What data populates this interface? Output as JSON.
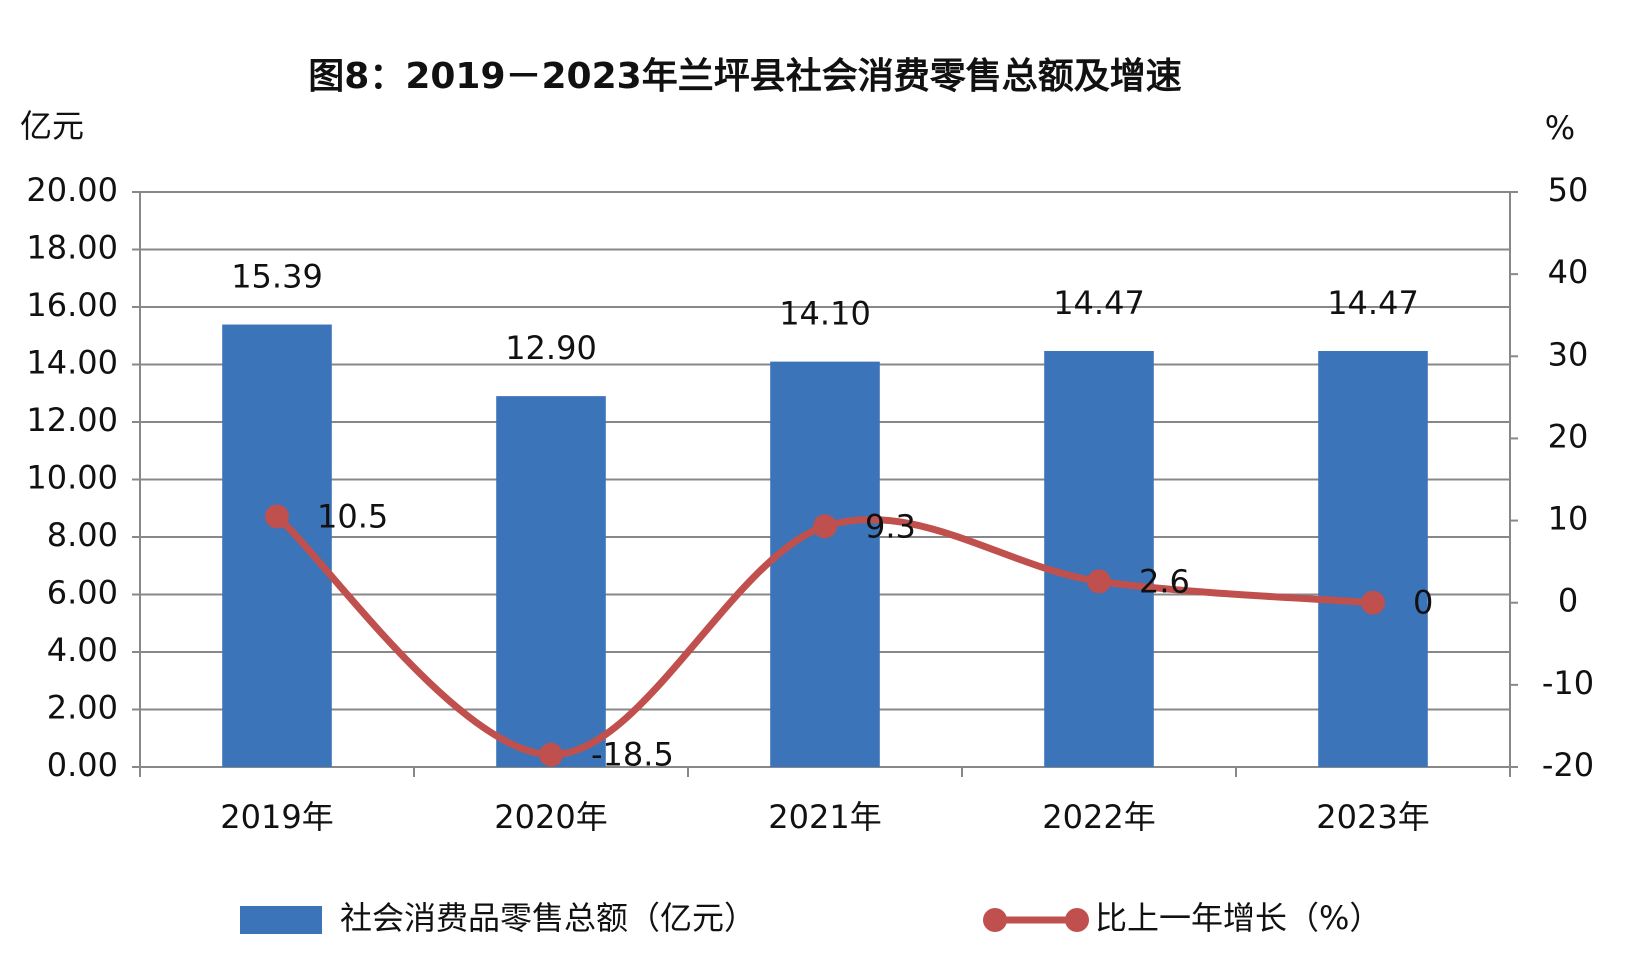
{
  "chart_data": {
    "type": "bar-line",
    "title": "图8：2019－2023年兰坪县社会消费零售总额及增速",
    "y_label": "亿元",
    "y2_label": "%",
    "categories": [
      "2019年",
      "2020年",
      "2021年",
      "2022年",
      "2023年"
    ],
    "series": [
      {
        "name": "社会消费品零售总额（亿元）",
        "type": "bar",
        "color": "#3b74b9",
        "values": [
          15.39,
          12.9,
          14.1,
          14.47,
          14.47
        ],
        "value_labels": [
          "15.39",
          "12.90",
          "14.10",
          "14.47",
          "14.47"
        ]
      },
      {
        "name": "比上一年增长（%）",
        "type": "line",
        "axis": "y2",
        "color": "#c0504d",
        "smooth": true,
        "values": [
          10.5,
          -18.5,
          9.3,
          2.6,
          0
        ],
        "negative_label_color": "#ff0000"
      }
    ],
    "ylim": [
      0,
      20
    ],
    "yticks": [
      {
        "value": 0,
        "label": "0.00"
      },
      {
        "value": 2,
        "label": "2.00"
      },
      {
        "value": 4,
        "label": "4.00"
      },
      {
        "value": 6,
        "label": "6.00"
      },
      {
        "value": 8,
        "label": "8.00"
      },
      {
        "value": 10,
        "label": "10.00"
      },
      {
        "value": 12,
        "label": "12.00"
      },
      {
        "value": 14,
        "label": "14.00"
      },
      {
        "value": 16,
        "label": "16.00"
      },
      {
        "value": 18,
        "label": "18.00"
      },
      {
        "value": 20,
        "label": "20.00"
      }
    ],
    "y2lim": [
      -20,
      50
    ],
    "y2ticks": [
      -20,
      -10,
      0,
      10,
      20,
      30,
      40,
      50
    ],
    "grid": true,
    "legend": "bottom"
  }
}
